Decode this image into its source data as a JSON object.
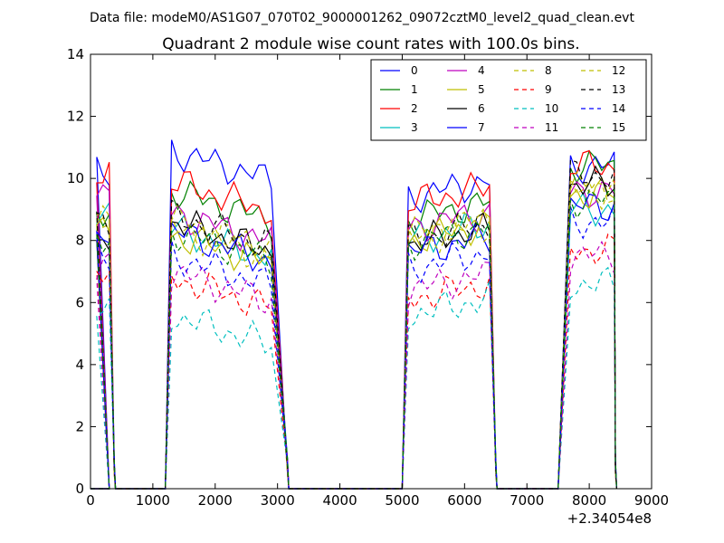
{
  "chart_data": {
    "type": "line",
    "suptitle": "Data file: modeM0/AS1G07_070T02_9000001262_09072cztM0_level2_quad_clean.evt",
    "title": "Quadrant 2 module wise count rates with 100.0s bins.",
    "xlabel": "",
    "ylabel": "",
    "xlim": [
      0,
      9000
    ],
    "ylim": [
      0,
      14
    ],
    "x_offset_label": "+2.34054e8",
    "x_ticks": [
      "0",
      "1000",
      "2000",
      "3000",
      "4000",
      "5000",
      "6000",
      "7000",
      "8000",
      "9000"
    ],
    "y_ticks": [
      "0",
      "2",
      "4",
      "6",
      "8",
      "10",
      "12",
      "14"
    ],
    "grid": false,
    "legend": {
      "placement": "top-right",
      "columns": 4
    },
    "segments": [
      {
        "start": 100,
        "count": 3,
        "rise": 300,
        "end": 380
      },
      {
        "start": 1300,
        "count": 17,
        "rise": 1200,
        "end": 3160
      },
      {
        "start": 5100,
        "count": 14,
        "rise": 5000,
        "end": 6500
      },
      {
        "start": 7700,
        "count": 8,
        "rise": 7500,
        "end": 8420
      }
    ],
    "series": [
      {
        "name": "0",
        "color": "#0000ff",
        "dash": "solid",
        "level": 10.3,
        "seg_levels": [
          10.35,
          10.9,
          9.4,
          10.4
        ]
      },
      {
        "name": "1",
        "color": "#008000",
        "dash": "solid",
        "level": 8.9,
        "seg_levels": [
          9.0,
          9.6,
          8.7,
          10.4
        ]
      },
      {
        "name": "2",
        "color": "#ff0000",
        "dash": "solid",
        "level": 10.0,
        "seg_levels": [
          10.1,
          9.9,
          9.2,
          10.4
        ]
      },
      {
        "name": "3",
        "color": "#00bfbf",
        "dash": "solid",
        "level": 8.6,
        "seg_levels": [
          8.7,
          8.4,
          8.0,
          9.0
        ]
      },
      {
        "name": "4",
        "color": "#bf00bf",
        "dash": "solid",
        "level": 9.2,
        "seg_levels": [
          9.5,
          8.9,
          8.4,
          9.6
        ]
      },
      {
        "name": "5",
        "color": "#bfbf00",
        "dash": "solid",
        "level": 8.0,
        "seg_levels": [
          8.6,
          8.2,
          8.0,
          9.5
        ]
      },
      {
        "name": "6",
        "color": "#000000",
        "dash": "solid",
        "level": 8.1,
        "seg_levels": [
          8.0,
          8.6,
          7.9,
          9.8
        ]
      },
      {
        "name": "7",
        "color": "#0000ff",
        "dash": "solid",
        "level": 7.9,
        "seg_levels": [
          8.0,
          8.3,
          7.6,
          9.1
        ]
      },
      {
        "name": "8",
        "color": "#bfbf00",
        "dash": "dashed",
        "level": 7.9,
        "seg_levels": [
          8.5,
          8.4,
          8.0,
          9.6
        ]
      },
      {
        "name": "9",
        "color": "#ff0000",
        "dash": "dashed",
        "level": 6.9,
        "seg_levels": [
          6.95,
          6.8,
          6.1,
          7.7
        ]
      },
      {
        "name": "10",
        "color": "#00bfbf",
        "dash": "dashed",
        "level": 5.8,
        "seg_levels": [
          6.0,
          5.6,
          5.6,
          6.6
        ]
      },
      {
        "name": "11",
        "color": "#bf00bf",
        "dash": "dashed",
        "level": 7.1,
        "seg_levels": [
          7.3,
          7.0,
          6.4,
          7.5
        ]
      },
      {
        "name": "12",
        "color": "#bfbf00",
        "dash": "dashed",
        "level": 8.5,
        "seg_levels": [
          8.6,
          8.7,
          8.2,
          9.7
        ]
      },
      {
        "name": "13",
        "color": "#000000",
        "dash": "dashed",
        "level": 8.6,
        "seg_levels": [
          8.4,
          8.8,
          8.0,
          10.1
        ]
      },
      {
        "name": "14",
        "color": "#0000ff",
        "dash": "dashed",
        "level": 7.6,
        "seg_levels": [
          7.6,
          7.5,
          7.1,
          8.6
        ]
      },
      {
        "name": "15",
        "color": "#008000",
        "dash": "dashed",
        "level": 8.3,
        "seg_levels": [
          8.2,
          8.3,
          7.9,
          9.3
        ]
      }
    ]
  }
}
